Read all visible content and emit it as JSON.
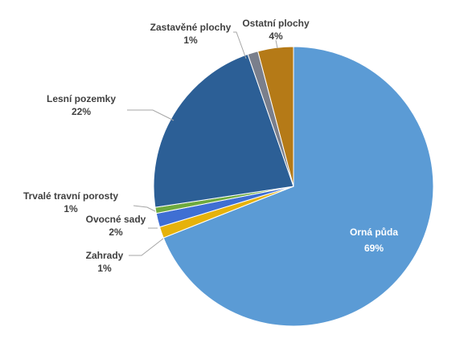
{
  "chart_data": {
    "type": "pie",
    "title": "",
    "legend": "none",
    "slices": [
      {
        "label": "Orná půda",
        "value": 69,
        "pct_label": "69%",
        "color": "#5B9BD5",
        "label_inside": true
      },
      {
        "label": "Zahrady",
        "value": 1.3,
        "pct_label": "1%",
        "color": "#E6B20A"
      },
      {
        "label": "Ovocné sady",
        "value": 1.6,
        "pct_label": "2%",
        "color": "#3F6FD3"
      },
      {
        "label": "Trvalé travní porosty",
        "value": 0.7,
        "pct_label": "1%",
        "color": "#6EAA3E"
      },
      {
        "label": "Lesní pozemky",
        "value": 22.1,
        "pct_label": "22%",
        "color": "#2C5F96"
      },
      {
        "label": "Zastavěné plochy",
        "value": 1.2,
        "pct_label": "1%",
        "color": "#7A7F8C"
      },
      {
        "label": "Ostatní plochy",
        "value": 4.1,
        "pct_label": "4%",
        "color": "#B57A17"
      }
    ]
  }
}
